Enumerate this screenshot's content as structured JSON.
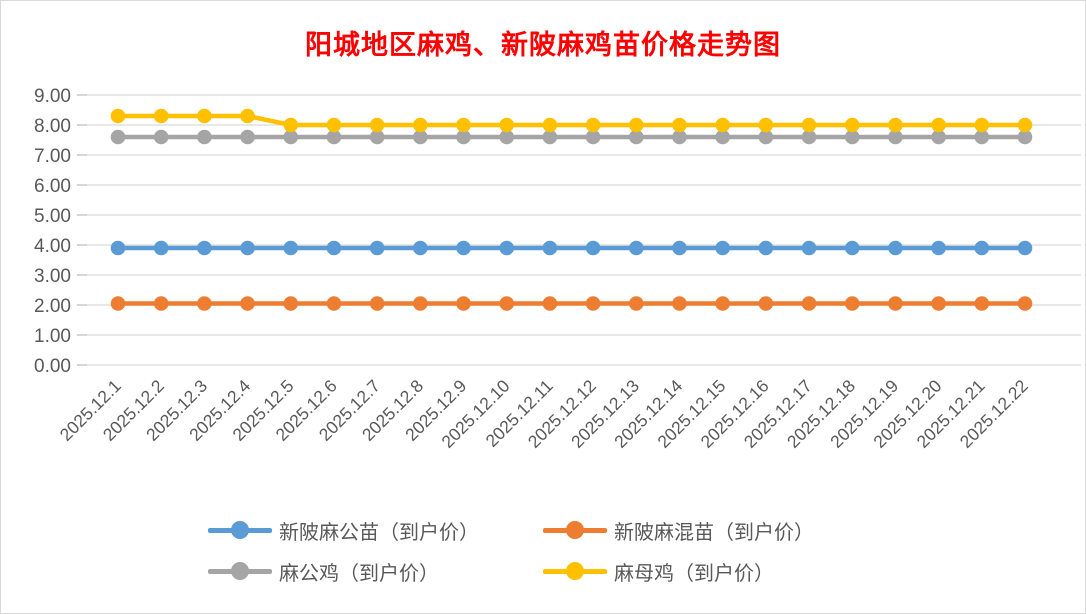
{
  "title": "阳城地区麻鸡、新陂麻鸡苗价格走势图",
  "colors": {
    "title": "#FF0000",
    "axis_text": "#595959",
    "gridline": "#D9D9D9",
    "tick": "#BFBFBF",
    "frame_border": "#D9D9D9",
    "background": "#FFFFFF"
  },
  "chart_data": {
    "type": "line",
    "title": "阳城地区麻鸡、新陂麻鸡苗价格走势图",
    "categories": [
      "2025.12.1",
      "2025.12.2",
      "2025.12.3",
      "2025.12.4",
      "2025.12.5",
      "2025.12.6",
      "2025.12.7",
      "2025.12.8",
      "2025.12.9",
      "2025.12.10",
      "2025.12.11",
      "2025.12.12",
      "2025.12.13",
      "2025.12.14",
      "2025.12.15",
      "2025.12.16",
      "2025.12.17",
      "2025.12.18",
      "2025.12.19",
      "2025.12.20",
      "2025.12.21",
      "2025.12.22"
    ],
    "series": [
      {
        "name": "新陂麻公苗（到户价）",
        "color": "#5B9BD5",
        "values": [
          3.9,
          3.9,
          3.9,
          3.9,
          3.9,
          3.9,
          3.9,
          3.9,
          3.9,
          3.9,
          3.9,
          3.9,
          3.9,
          3.9,
          3.9,
          3.9,
          3.9,
          3.9,
          3.9,
          3.9,
          3.9,
          3.9
        ]
      },
      {
        "name": "新陂麻混苗（到户价）",
        "color": "#ED7D31",
        "values": [
          2.05,
          2.05,
          2.05,
          2.05,
          2.05,
          2.05,
          2.05,
          2.05,
          2.05,
          2.05,
          2.05,
          2.05,
          2.05,
          2.05,
          2.05,
          2.05,
          2.05,
          2.05,
          2.05,
          2.05,
          2.05,
          2.05
        ]
      },
      {
        "name": "麻公鸡（到户价）",
        "color": "#A5A5A5",
        "values": [
          7.6,
          7.6,
          7.6,
          7.6,
          7.6,
          7.6,
          7.6,
          7.6,
          7.6,
          7.6,
          7.6,
          7.6,
          7.6,
          7.6,
          7.6,
          7.6,
          7.6,
          7.6,
          7.6,
          7.6,
          7.6,
          7.6
        ]
      },
      {
        "name": "麻母鸡（到户价）",
        "color": "#FFC000",
        "values": [
          8.3,
          8.3,
          8.3,
          8.3,
          8.0,
          8.0,
          8.0,
          8.0,
          8.0,
          8.0,
          8.0,
          8.0,
          8.0,
          8.0,
          8.0,
          8.0,
          8.0,
          8.0,
          8.0,
          8.0,
          8.0,
          8.0
        ]
      }
    ],
    "ylim": [
      0,
      9
    ],
    "ytick_step": 1,
    "ytick_decimals": 2,
    "grid": true,
    "x_label_rotation": -45,
    "legend_position": "bottom"
  }
}
